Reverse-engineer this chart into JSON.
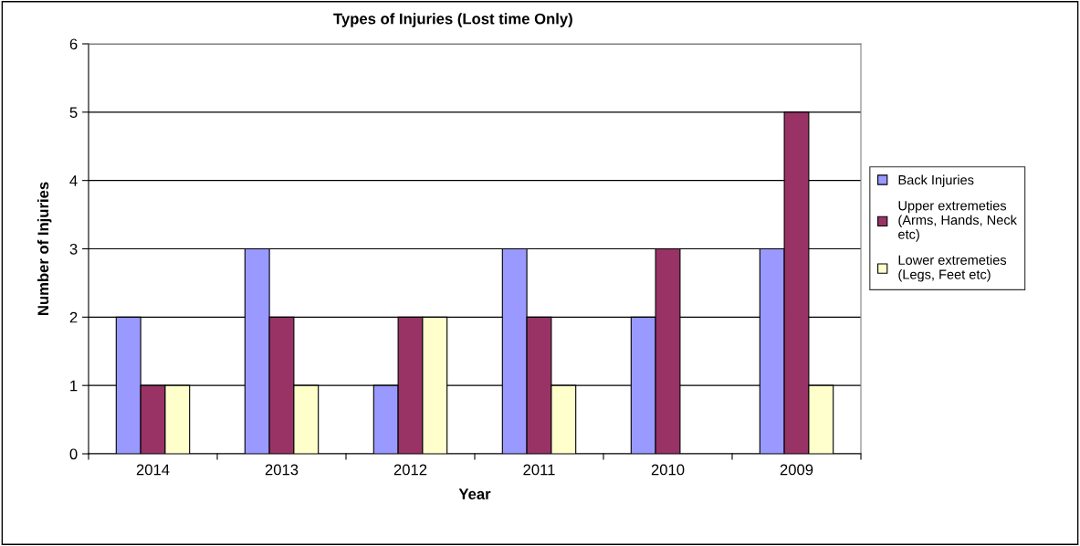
{
  "chart_data": {
    "type": "bar",
    "title": "Types of Injuries (Lost time Only)",
    "xlabel": "Year",
    "ylabel": "Number of Injuries",
    "categories": [
      "2014",
      "2013",
      "2012",
      "2011",
      "2010",
      "2009"
    ],
    "series": [
      {
        "name": "Back Injuries",
        "color": "#9999ff",
        "values": [
          2,
          3,
          1,
          3,
          2,
          3
        ]
      },
      {
        "name": "Upper extremeties\n(Arms, Hands, Neck\netc)",
        "color": "#993366",
        "values": [
          1,
          2,
          2,
          2,
          3,
          5
        ]
      },
      {
        "name": "Lower extremeties\n(Legs, Feet etc)",
        "color": "#ffffcc",
        "values": [
          1,
          1,
          2,
          1,
          null,
          1
        ]
      }
    ],
    "ylim": [
      0,
      6
    ],
    "yticks": [
      0,
      1,
      2,
      3,
      4,
      5,
      6
    ],
    "grid": "y",
    "legend": "right"
  }
}
